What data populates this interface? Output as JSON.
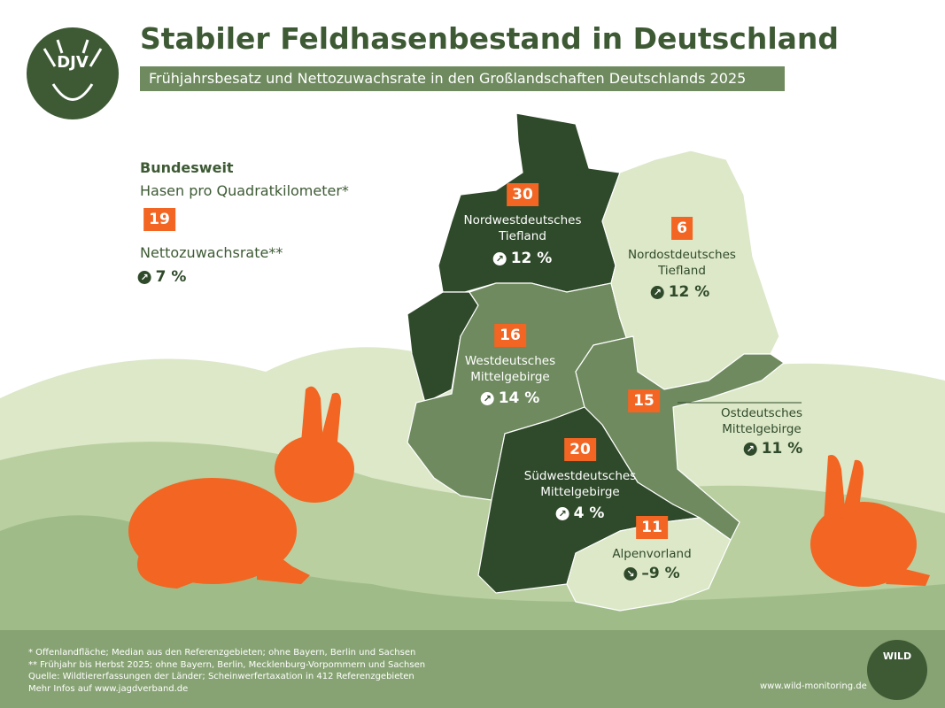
{
  "header": {
    "title": "Stabiler Feldhasenbestand in Deutschland",
    "subtitle": "Frühjahrsbesatz und Nettozuwachsrate in den Großlandschaften Deutschlands 2025"
  },
  "logo": {
    "label": "DJV"
  },
  "national": {
    "heading": "Bundesweit",
    "density_label": "Hasen pro Quadratkilometer*",
    "density": 19,
    "rate_label": "Nettozuwachsrate**",
    "rate": "7 %",
    "trend": "up"
  },
  "regions": [
    {
      "name": "Nordwestdeutsches Tiefland",
      "density": 30,
      "rate": "12 %",
      "trend": "up"
    },
    {
      "name": "Nordostdeutsches Tiefland",
      "density": 6,
      "rate": "12 %",
      "trend": "up"
    },
    {
      "name": "Westdeutsches Mittelgebirge",
      "density": 16,
      "rate": "14 %",
      "trend": "up"
    },
    {
      "name": "Ostdeutsches Mittelgebirge",
      "density": 15,
      "rate": "11 %",
      "trend": "up"
    },
    {
      "name": "Südwestdeutsches Mittelgebirge",
      "density": 20,
      "rate": "4 %",
      "trend": "up"
    },
    {
      "name": "Alpenvorland",
      "density": 11,
      "rate": "–9 %",
      "trend": "down"
    }
  ],
  "footer": {
    "notes": [
      "* Offenlandfläche; Median aus den Referenzgebieten; ohne Bayern, Berlin und Sachsen",
      "** Frühjahr bis Herbst 2025; ohne Bayern, Berlin, Mecklenburg-Vorpommern und Sachsen",
      "Quelle: Wildtiererfassungen der Länder; Scheinwerfertaxation in 412 Referenzgebieten",
      "Mehr Infos auf www.jagdverband.de"
    ],
    "wild_logo": "WILD",
    "url": "www.wild-monitoring.de"
  }
}
